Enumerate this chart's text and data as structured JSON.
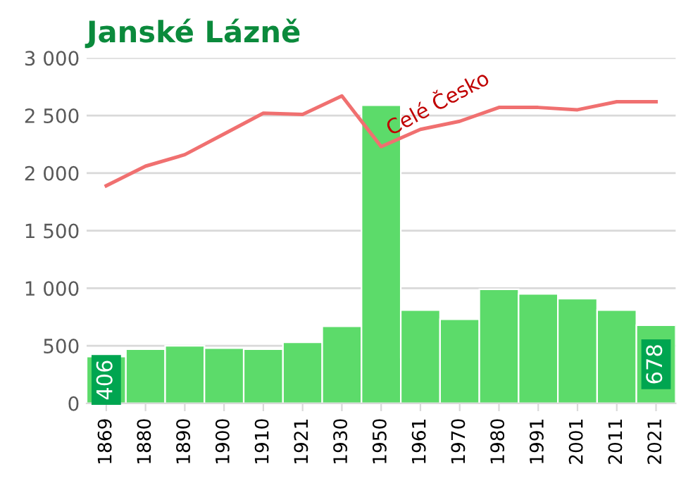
{
  "chart_data": {
    "type": "bar",
    "title": "Janské Lázně",
    "categories": [
      "1869",
      "1880",
      "1890",
      "1900",
      "1910",
      "1921",
      "1930",
      "1950",
      "1961",
      "1970",
      "1980",
      "1991",
      "2001",
      "2011",
      "2021"
    ],
    "series": [
      {
        "color": "#5cdb6a",
        "values": [
          406,
          470,
          500,
          480,
          470,
          530,
          670,
          2590,
          810,
          730,
          990,
          950,
          910,
          810,
          678
        ],
        "value_labels": [
          "406",
          null,
          null,
          null,
          null,
          null,
          null,
          null,
          null,
          null,
          null,
          null,
          null,
          null,
          "678"
        ]
      },
      {
        "type": "line",
        "name": "Celé Česko",
        "color": "#f07070",
        "values": [
          1890,
          2060,
          2160,
          2340,
          2520,
          2510,
          2670,
          2230,
          2380,
          2450,
          2570,
          2570,
          2550,
          2620,
          2620
        ]
      }
    ],
    "ylim": [
      0,
      3000
    ],
    "yticks": [
      0,
      {
        "value": 500,
        "label": "500"
      },
      {
        "value": 1000,
        "label": "1 000"
      },
      {
        "value": 1500,
        "label": "1 500"
      },
      {
        "value": 2000,
        "label": "2 000"
      },
      {
        "value": 2500,
        "label": "2 500"
      },
      {
        "value": 3000,
        "label": "3 000"
      }
    ],
    "grid": "y",
    "legend": false
  }
}
